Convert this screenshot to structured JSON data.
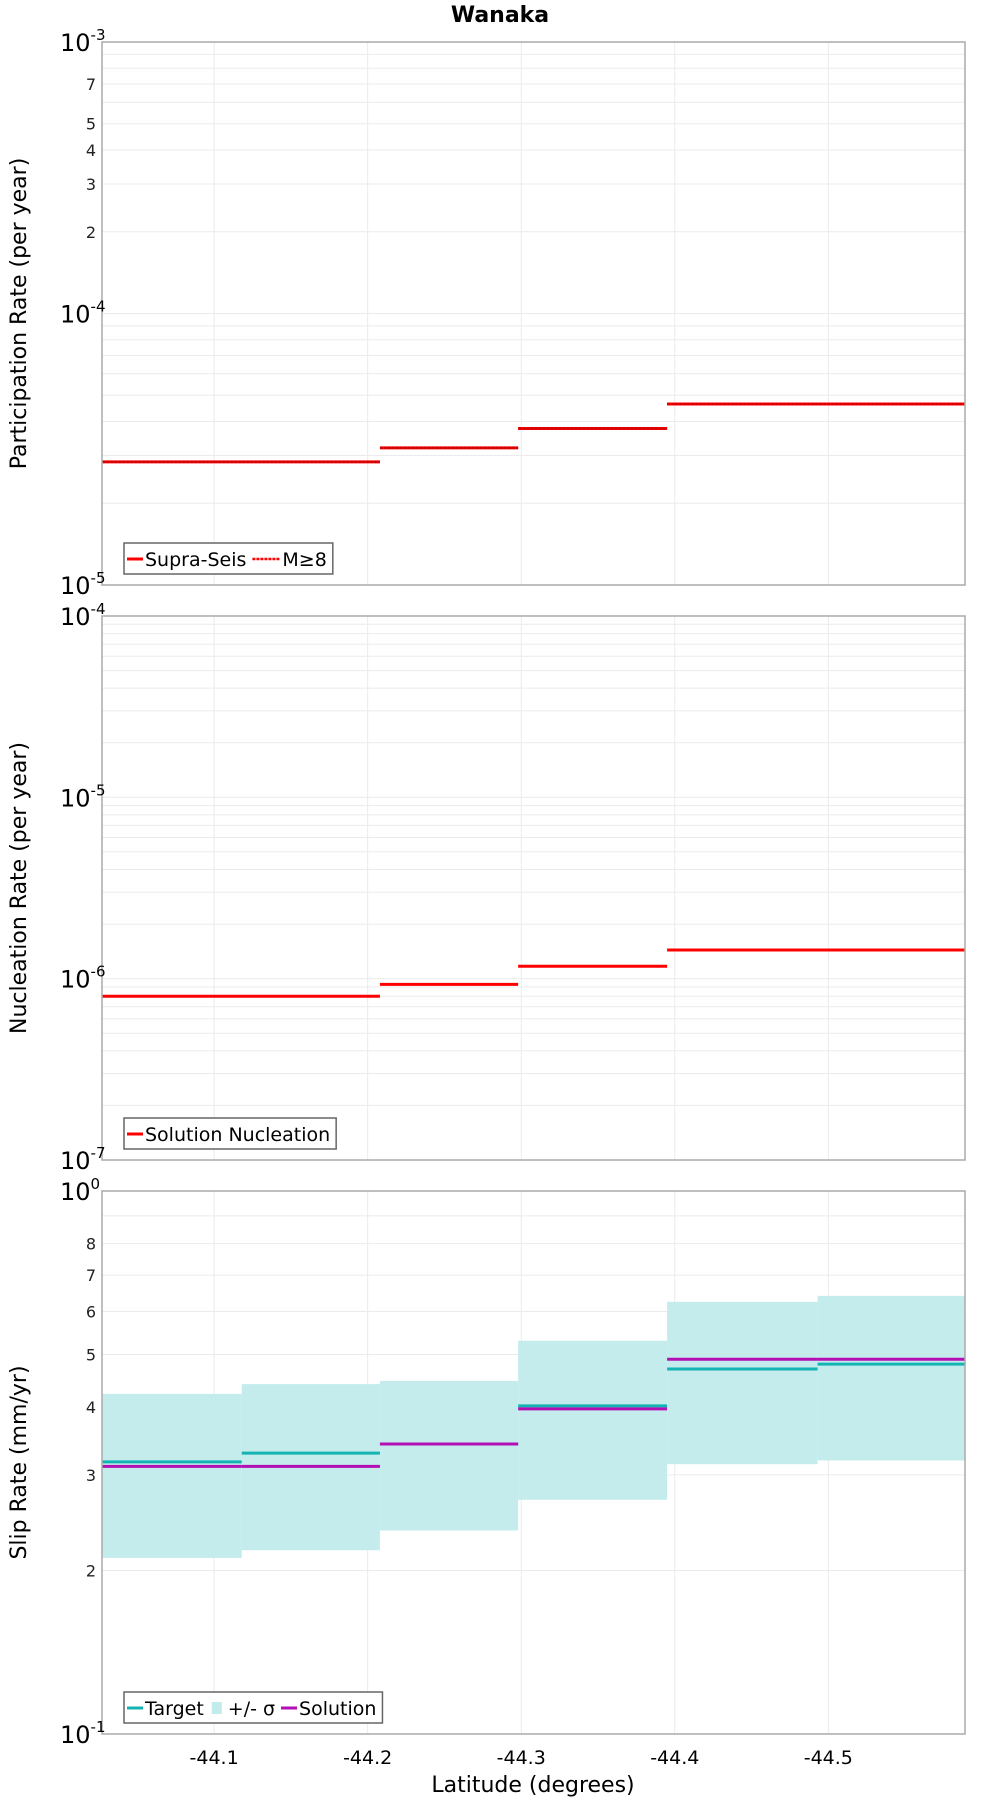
{
  "chart_data": [
    {
      "id": "participation",
      "type": "line",
      "step": true,
      "title": "Wanaka",
      "xlabel": "",
      "ylabel": "Participation Rate (per year)",
      "yscale": "log",
      "ylim": [
        1e-05,
        0.001
      ],
      "xlim": [
        -44.027,
        -44.589
      ],
      "grid": true,
      "legend_position": "bottom-left",
      "y_major_ticks": [
        {
          "value": 1e-05,
          "base": "10",
          "exp": "-5"
        },
        {
          "value": 0.0001,
          "base": "10",
          "exp": "-4"
        },
        {
          "value": 0.001,
          "base": "10",
          "exp": "-3"
        }
      ],
      "y_minor_labels": [
        "2",
        "3",
        "4",
        "5",
        "7"
      ],
      "series": [
        {
          "name": "Supra-Seis",
          "color": "#ff0000",
          "style": "solid",
          "segments": [
            {
              "x0": -44.027,
              "x1": -44.208,
              "y": 2.84e-05
            },
            {
              "x0": -44.208,
              "x1": -44.298,
              "y": 3.2e-05
            },
            {
              "x0": -44.298,
              "x1": -44.395,
              "y": 3.77e-05
            },
            {
              "x0": -44.395,
              "x1": -44.589,
              "y": 4.64e-05
            }
          ]
        },
        {
          "name": "M≥8",
          "color": "#ff0000",
          "style": "dotted",
          "segments": [
            {
              "x0": -44.027,
              "x1": -44.208,
              "y": 2.84e-05
            },
            {
              "x0": -44.208,
              "x1": -44.298,
              "y": 3.2e-05
            },
            {
              "x0": -44.298,
              "x1": -44.395,
              "y": 3.77e-05
            },
            {
              "x0": -44.395,
              "x1": -44.589,
              "y": 4.64e-05
            }
          ]
        }
      ]
    },
    {
      "id": "nucleation",
      "type": "line",
      "step": true,
      "xlabel": "",
      "ylabel": "Nucleation Rate (per year)",
      "yscale": "log",
      "ylim": [
        1e-07,
        0.0001
      ],
      "xlim": [
        -44.027,
        -44.589
      ],
      "grid": true,
      "legend_position": "bottom-left",
      "y_major_ticks": [
        {
          "value": 1e-07,
          "base": "10",
          "exp": "-7"
        },
        {
          "value": 1e-06,
          "base": "10",
          "exp": "-6"
        },
        {
          "value": 1e-05,
          "base": "10",
          "exp": "-5"
        },
        {
          "value": 0.0001,
          "base": "10",
          "exp": "-4"
        }
      ],
      "y_minor_labels": [],
      "series": [
        {
          "name": "Solution Nucleation",
          "color": "#ff0000",
          "style": "solid",
          "segments": [
            {
              "x0": -44.027,
              "x1": -44.208,
              "y": 8e-07
            },
            {
              "x0": -44.208,
              "x1": -44.298,
              "y": 9.3e-07
            },
            {
              "x0": -44.298,
              "x1": -44.395,
              "y": 1.17e-06
            },
            {
              "x0": -44.395,
              "x1": -44.589,
              "y": 1.44e-06
            }
          ]
        }
      ]
    },
    {
      "id": "slip",
      "type": "line",
      "step": true,
      "xlabel": "Latitude (degrees)",
      "ylabel": "Slip Rate (mm/yr)",
      "yscale": "log",
      "ylim": [
        0.1,
        1.0
      ],
      "xlim": [
        -44.027,
        -44.589
      ],
      "grid": true,
      "legend_position": "bottom-left",
      "x_ticks": [
        {
          "value": -44.1,
          "label": "-44.1"
        },
        {
          "value": -44.2,
          "label": "-44.2"
        },
        {
          "value": -44.3,
          "label": "-44.3"
        },
        {
          "value": -44.4,
          "label": "-44.4"
        },
        {
          "value": -44.5,
          "label": "-44.5"
        }
      ],
      "y_major_ticks": [
        {
          "value": 0.1,
          "base": "10",
          "exp": "-1"
        },
        {
          "value": 1.0,
          "base": "10",
          "exp": "0"
        }
      ],
      "y_minor_labels": [
        "2",
        "3",
        "4",
        "5",
        "6",
        "7",
        "8"
      ],
      "band": {
        "name": "+/- σ",
        "color": "#c2ebeb",
        "segments": [
          {
            "x0": -44.027,
            "x1": -44.118,
            "lo": 0.211,
            "hi": 0.423
          },
          {
            "x0": -44.118,
            "x1": -44.208,
            "lo": 0.218,
            "hi": 0.441
          },
          {
            "x0": -44.208,
            "x1": -44.298,
            "lo": 0.237,
            "hi": 0.447
          },
          {
            "x0": -44.298,
            "x1": -44.395,
            "lo": 0.27,
            "hi": 0.53
          },
          {
            "x0": -44.395,
            "x1": -44.493,
            "lo": 0.314,
            "hi": 0.625
          },
          {
            "x0": -44.493,
            "x1": -44.589,
            "lo": 0.319,
            "hi": 0.641
          }
        ]
      },
      "series": [
        {
          "name": "Target",
          "color": "#14b4b4",
          "style": "solid",
          "segments": [
            {
              "x0": -44.027,
              "x1": -44.118,
              "y": 0.317
            },
            {
              "x0": -44.118,
              "x1": -44.208,
              "y": 0.329
            },
            {
              "x0": -44.208,
              "x1": -44.298,
              "y": 0.342
            },
            {
              "x0": -44.298,
              "x1": -44.395,
              "y": 0.402
            },
            {
              "x0": -44.395,
              "x1": -44.493,
              "y": 0.47
            },
            {
              "x0": -44.493,
              "x1": -44.589,
              "y": 0.48
            }
          ]
        },
        {
          "name": "Solution",
          "color": "#b40fb4",
          "style": "solid",
          "segments": [
            {
              "x0": -44.027,
              "x1": -44.118,
              "y": 0.311
            },
            {
              "x0": -44.118,
              "x1": -44.208,
              "y": 0.311
            },
            {
              "x0": -44.208,
              "x1": -44.298,
              "y": 0.342
            },
            {
              "x0": -44.298,
              "x1": -44.395,
              "y": 0.397
            },
            {
              "x0": -44.395,
              "x1": -44.493,
              "y": 0.49
            },
            {
              "x0": -44.493,
              "x1": -44.589,
              "y": 0.49
            }
          ]
        }
      ],
      "legend_order": [
        "Target",
        "+/- σ",
        "Solution"
      ]
    }
  ]
}
